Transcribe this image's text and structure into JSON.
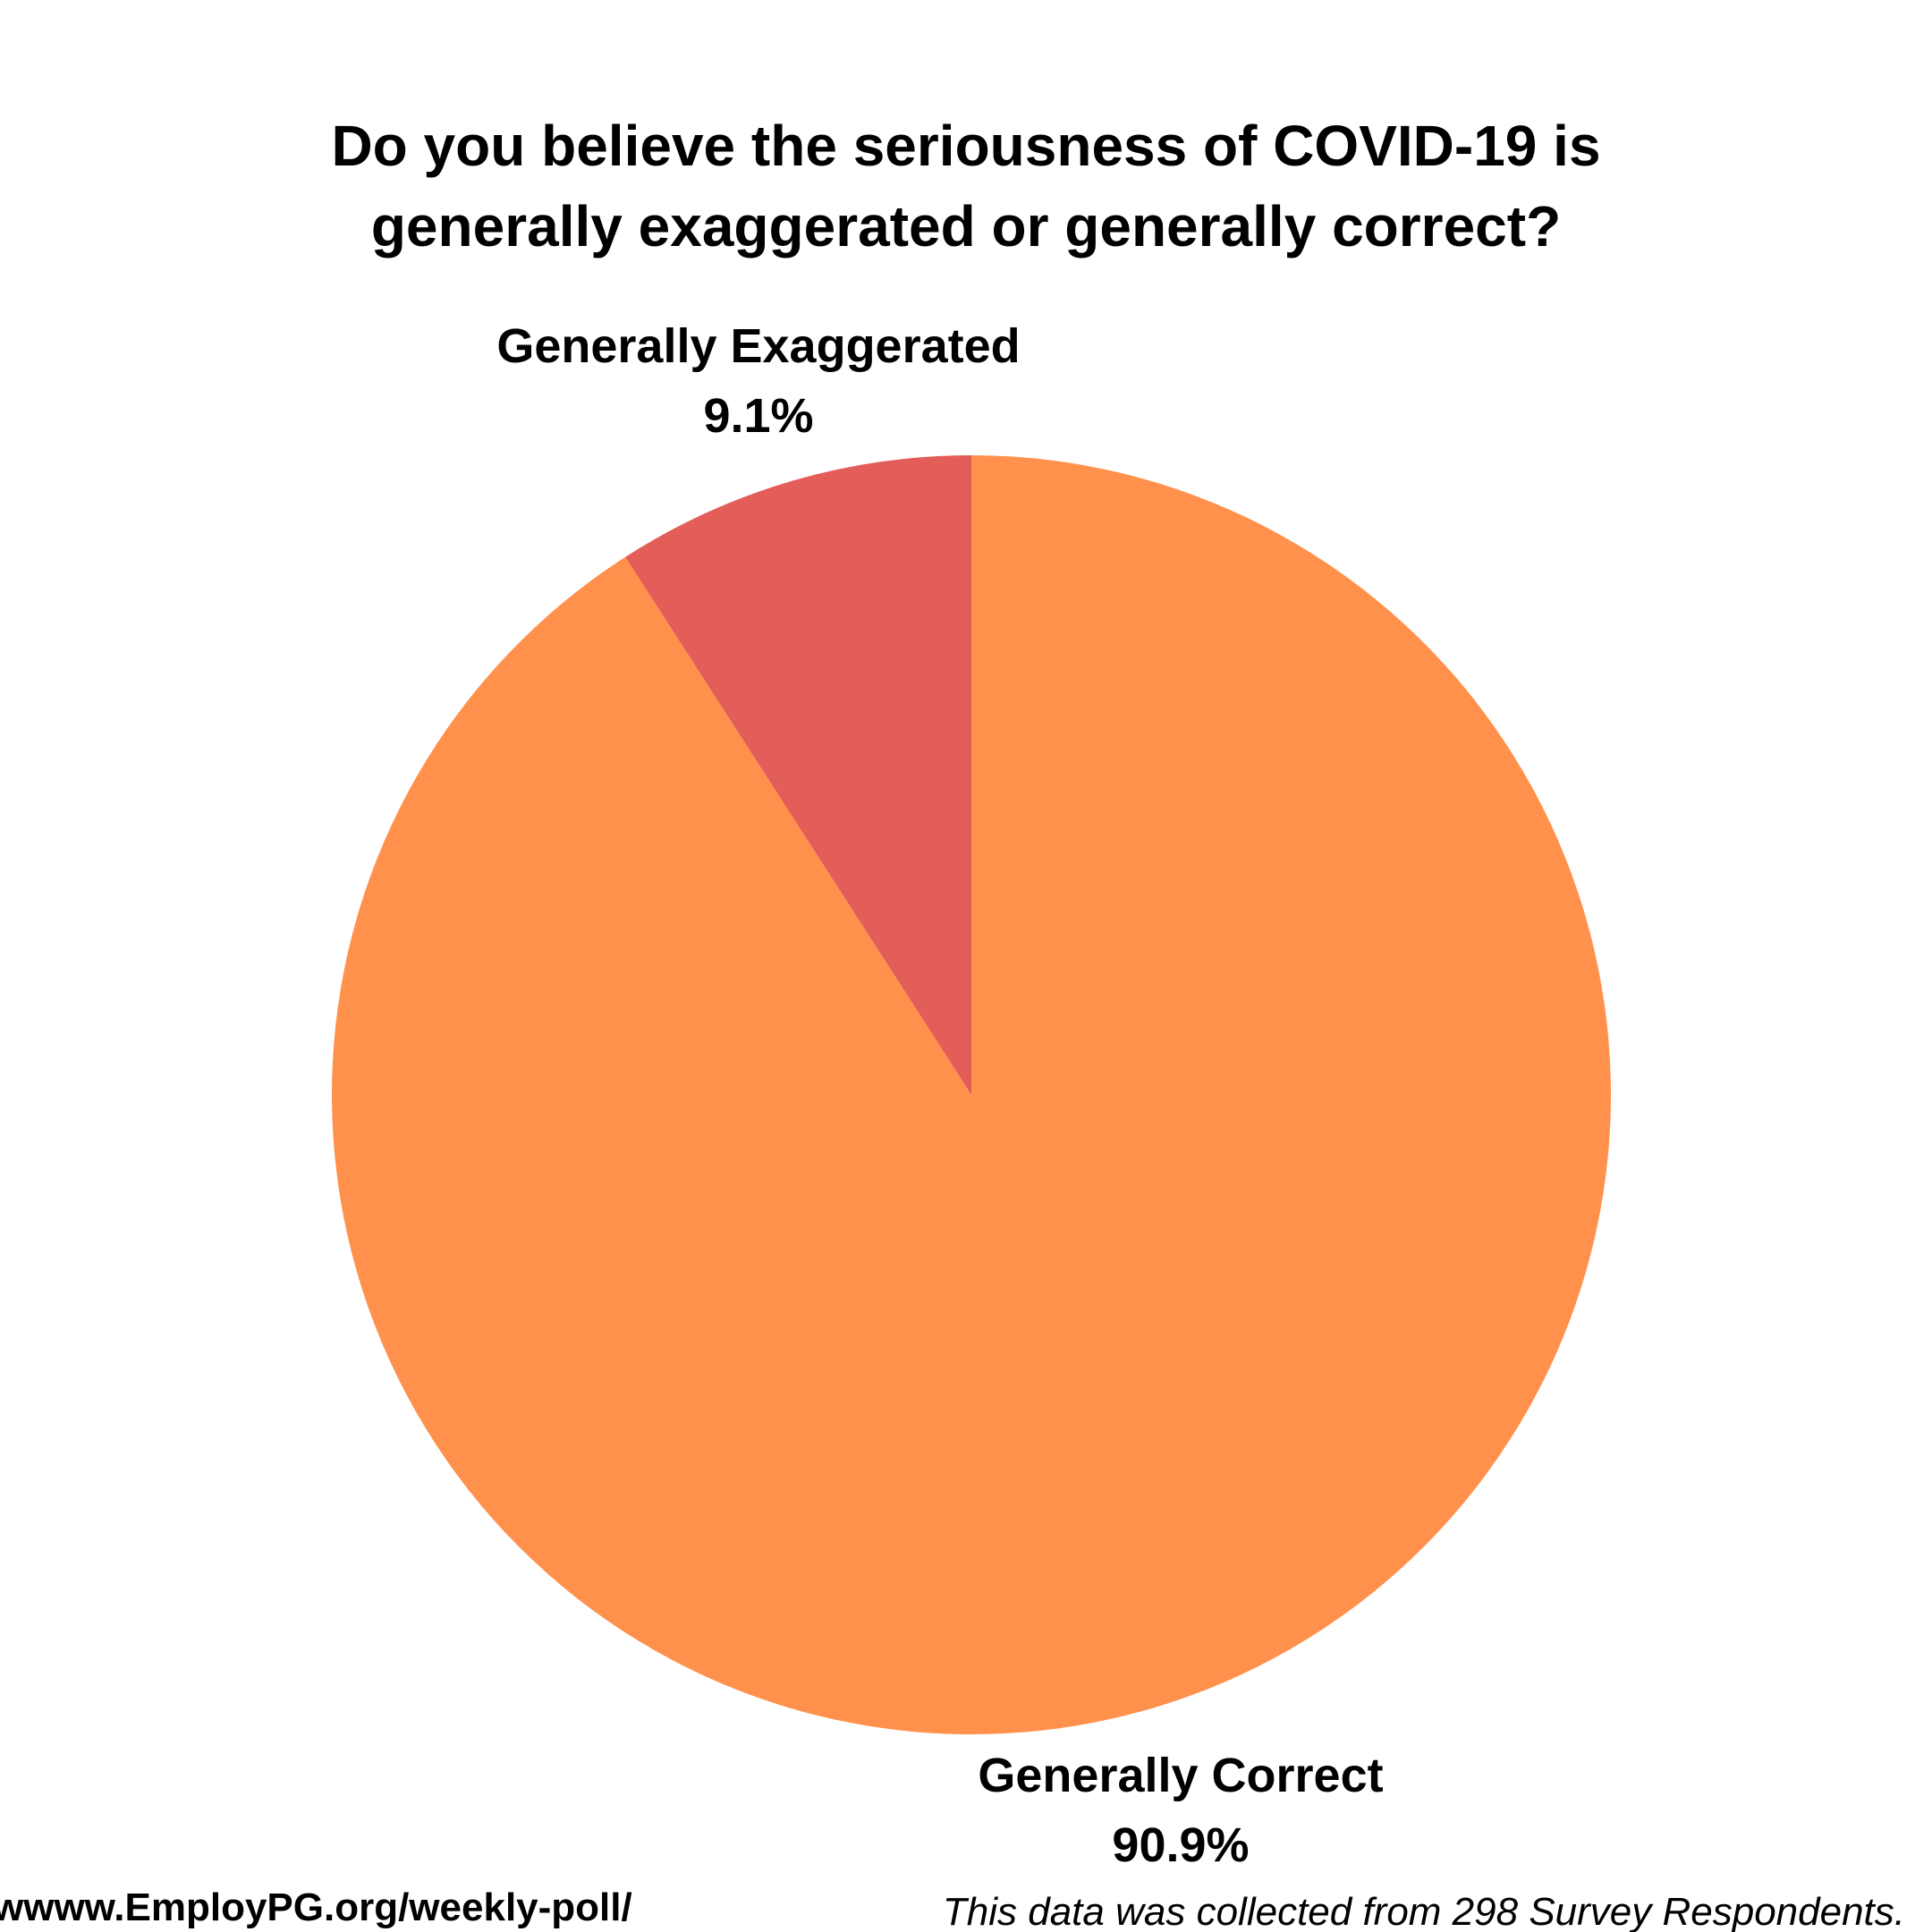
{
  "chart_data": {
    "type": "pie",
    "title": [
      "Do you believe the seriousness of COVID-19 is",
      "generally exaggerated or generally correct?"
    ],
    "slices": [
      {
        "label": "Generally Correct",
        "value": 90.9,
        "value_label": "90.9%",
        "color": "#ff914d"
      },
      {
        "label": "Generally Exaggerated",
        "value": 9.1,
        "value_label": "9.1%",
        "color": "#e35d59"
      }
    ],
    "start": "12 o'clock",
    "direction": "clockwise",
    "legend": "none"
  },
  "footer": {
    "link": "wwww.EmployPG.org/weekly-poll/",
    "note": "This data was collected from 298 Survey Respondents."
  }
}
